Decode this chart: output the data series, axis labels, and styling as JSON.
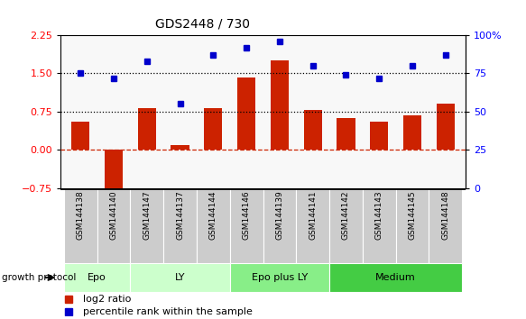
{
  "title": "GDS2448 / 730",
  "samples": [
    "GSM144138",
    "GSM144140",
    "GSM144147",
    "GSM144137",
    "GSM144144",
    "GSM144146",
    "GSM144139",
    "GSM144141",
    "GSM144142",
    "GSM144143",
    "GSM144145",
    "GSM144148"
  ],
  "log2_ratio": [
    0.55,
    -0.9,
    0.82,
    0.1,
    0.82,
    1.42,
    1.75,
    0.78,
    0.62,
    0.55,
    0.68,
    0.9
  ],
  "percentile_rank": [
    75,
    72,
    83,
    55,
    87,
    92,
    96,
    80,
    74,
    72,
    80,
    87
  ],
  "groups": [
    {
      "label": "Epo",
      "start": 0,
      "end": 2,
      "color": "#ccffcc"
    },
    {
      "label": "LY",
      "start": 2,
      "end": 5,
      "color": "#ccffcc"
    },
    {
      "label": "Epo plus LY",
      "start": 5,
      "end": 8,
      "color": "#88ee88"
    },
    {
      "label": "Medium",
      "start": 8,
      "end": 12,
      "color": "#44cc44"
    }
  ],
  "ylim_left": [
    -0.75,
    2.25
  ],
  "ylim_right": [
    0,
    100
  ],
  "bar_color": "#cc2200",
  "dot_color": "#0000cc",
  "hline_y": [
    0.75,
    1.5
  ],
  "zero_line_color": "#cc2200",
  "bg_color": "#f8f8f8",
  "sample_bg_color": "#cccccc",
  "legend_bar_label": "log2 ratio",
  "legend_dot_label": "percentile rank within the sample",
  "left_yticks": [
    -0.75,
    0,
    0.75,
    1.5,
    2.25
  ],
  "right_yticks": [
    0,
    25,
    50,
    75,
    100
  ],
  "right_yticklabels": [
    "0",
    "25",
    "50",
    "75",
    "100%"
  ]
}
